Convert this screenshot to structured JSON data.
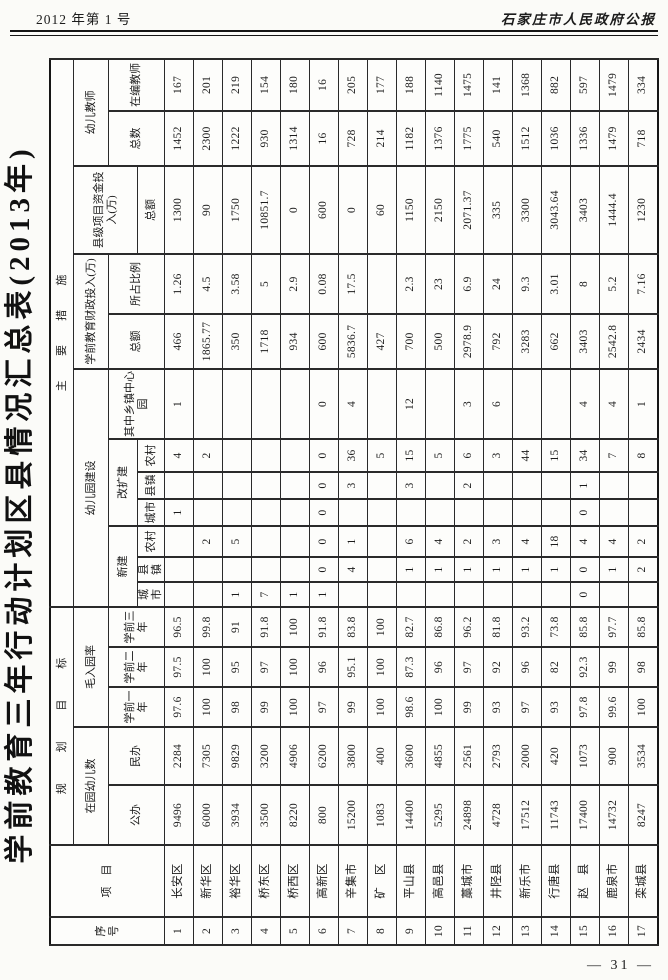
{
  "page_header": {
    "issue": "2012 年第 1 号",
    "gazette": "石家庄市人民政府公报"
  },
  "title": "学前教育三年行动计划区县情况汇总表(2013年)",
  "footer": {
    "page": "— 31 —"
  },
  "table": {
    "header": {
      "xuhao": "序　号",
      "xiangmu": "项　目",
      "guihua_mubiao": "规划目标",
      "zhuyao_cuoshi": "主要措施",
      "zaiyuan_youer_shu": "在园幼儿数",
      "mao_ru_yuan_lv": "毛入园率",
      "gongban": "公办",
      "minban": "民办",
      "xueqian_yinian": "学前一年",
      "xueqian_ernian": "学前二年",
      "xueqian_sannian": "学前三年",
      "youeryuan_jianshe": "幼儿园建设",
      "xinjian": "新建",
      "gaikuojian": "改扩建",
      "chengshi": "城市",
      "xianzhen": "县镇",
      "nongcun": "农村",
      "xiangzhen_zhongxinyuan": "其中乡镇中心园",
      "caizheng_touru": "学前教育财政投入(万)",
      "caizheng_zonge": "总额",
      "suozhan_bili": "所占比例",
      "xianji_zijin": "县级项目资金投入(万)",
      "xianji_zonge": "总额",
      "youer_jiaoshi": "幼儿教师",
      "jiaoshi_zongshu": "总数",
      "zaibian_jiaoshi": "在编教师"
    },
    "columns": [
      "xuhao",
      "xiangmu",
      "gongban",
      "minban",
      "xueqian-yinian",
      "xueqian-ernian",
      "xueqian-sannian",
      "xinjian-chengshi",
      "xinjian-xianzhen",
      "xinjian-nongcun",
      "gaikuo-chengshi",
      "gaikuo-xianzhen",
      "gaikuo-nongcun",
      "xiangzhen-zhongxinyuan",
      "caizheng-zonge",
      "suozhan-bili",
      "xianji-zonge",
      "jiaoshi-zongshu",
      "zaibian-jiaoshi"
    ],
    "rows": [
      [
        "1",
        "长安区",
        "9496",
        "2284",
        "97.6",
        "97.5",
        "96.5",
        "",
        "",
        "",
        "1",
        "",
        "4",
        "1",
        "466",
        "1.26",
        "1300",
        "1452",
        "167"
      ],
      [
        "2",
        "新华区",
        "6000",
        "7305",
        "100",
        "100",
        "99.8",
        "",
        "",
        "2",
        "",
        "",
        "2",
        "",
        "1865.77",
        "4.5",
        "90",
        "2300",
        "201"
      ],
      [
        "3",
        "裕华区",
        "3934",
        "9829",
        "98",
        "95",
        "91",
        "1",
        "",
        "5",
        "",
        "",
        "",
        "",
        "350",
        "3.58",
        "1750",
        "1222",
        "219"
      ],
      [
        "4",
        "桥东区",
        "3500",
        "3200",
        "99",
        "97",
        "91.8",
        "7",
        "",
        "",
        "",
        "",
        "",
        "",
        "1718",
        "5",
        "10851.7",
        "930",
        "154"
      ],
      [
        "5",
        "桥西区",
        "8220",
        "4906",
        "100",
        "100",
        "100",
        "1",
        "",
        "",
        "",
        "",
        "",
        "",
        "934",
        "2.9",
        "0",
        "1314",
        "180"
      ],
      [
        "6",
        "高新区",
        "800",
        "6200",
        "97",
        "96",
        "91.8",
        "1",
        "0",
        "0",
        "0",
        "0",
        "0",
        "0",
        "600",
        "0.08",
        "600",
        "16",
        "16"
      ],
      [
        "7",
        "辛集市",
        "15200",
        "3800",
        "99",
        "95.1",
        "83.8",
        "",
        "4",
        "1",
        "",
        "3",
        "36",
        "4",
        "5836.7",
        "17.5",
        "0",
        "728",
        "205"
      ],
      [
        "8",
        "矿　区",
        "1083",
        "400",
        "100",
        "100",
        "100",
        "",
        "",
        "",
        "",
        "",
        "5",
        "",
        "427",
        "",
        "60",
        "214",
        "177"
      ],
      [
        "9",
        "平山县",
        "14400",
        "3600",
        "98.6",
        "87.3",
        "82.7",
        "",
        "1",
        "6",
        "",
        "3",
        "15",
        "12",
        "700",
        "2.3",
        "1150",
        "1182",
        "188"
      ],
      [
        "10",
        "高邑县",
        "5295",
        "4855",
        "100",
        "96",
        "86.8",
        "",
        "1",
        "4",
        "",
        "",
        "5",
        "",
        "500",
        "23",
        "2150",
        "1376",
        "1140"
      ],
      [
        "11",
        "藁城市",
        "24898",
        "2561",
        "99",
        "97",
        "96.2",
        "",
        "1",
        "2",
        "",
        "2",
        "6",
        "3",
        "2978.9",
        "6.9",
        "2071.37",
        "1775",
        "1475"
      ],
      [
        "12",
        "井陉县",
        "4728",
        "2793",
        "93",
        "92",
        "81.8",
        "",
        "1",
        "3",
        "",
        "",
        "3",
        "6",
        "792",
        "24",
        "335",
        "540",
        "141"
      ],
      [
        "13",
        "新乐市",
        "17512",
        "2000",
        "97",
        "96",
        "93.2",
        "",
        "1",
        "4",
        "",
        "",
        "44",
        "",
        "3283",
        "9.3",
        "3300",
        "1512",
        "1368"
      ],
      [
        "14",
        "行唐县",
        "11743",
        "420",
        "93",
        "82",
        "73.8",
        "",
        "1",
        "18",
        "",
        "",
        "15",
        "",
        "662",
        "3.01",
        "3043.64",
        "1036",
        "882"
      ],
      [
        "15",
        "赵　县",
        "17400",
        "1073",
        "97.8",
        "92.3",
        "85.8",
        "0",
        "0",
        "4",
        "0",
        "1",
        "34",
        "4",
        "3403",
        "8",
        "3403",
        "1336",
        "597"
      ],
      [
        "16",
        "鹿泉市",
        "14732",
        "900",
        "99.6",
        "99",
        "97.7",
        "",
        "1",
        "4",
        "",
        "",
        "7",
        "4",
        "2542.8",
        "5.2",
        "1444.4",
        "1479",
        "1479"
      ],
      [
        "17",
        "栾城县",
        "8247",
        "3534",
        "100",
        "98",
        "85.8",
        "",
        "2",
        "2",
        "",
        "",
        "8",
        "1",
        "2434",
        "7.16",
        "1230",
        "718",
        "334"
      ]
    ]
  }
}
